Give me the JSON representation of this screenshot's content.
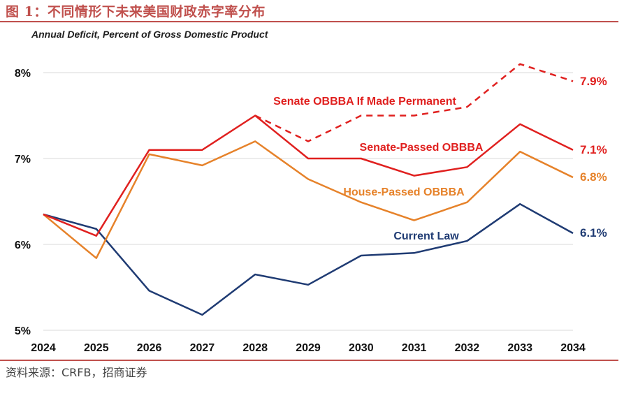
{
  "figure": {
    "title": "图 1：不同情形下未来美国财政赤字率分布",
    "source": "资料来源：CRFB，招商证券"
  },
  "chart_data": {
    "type": "line",
    "subtitle": "Annual Deficit, Percent of Gross Domestic Product",
    "xlabel": "",
    "ylabel": "",
    "x": [
      "2024",
      "2025",
      "2026",
      "2027",
      "2028",
      "2029",
      "2030",
      "2031",
      "2032",
      "2033",
      "2034"
    ],
    "ylim": [
      5,
      8.4
    ],
    "yticks": [
      5,
      6,
      7,
      8
    ],
    "ytick_labels": [
      "5%",
      "6%",
      "7%",
      "8%"
    ],
    "grid": "horizontal",
    "series": [
      {
        "name": "Current Law",
        "color": "#1f3b73",
        "dash": false,
        "values": [
          6.35,
          6.18,
          5.46,
          5.18,
          5.65,
          5.53,
          5.87,
          5.9,
          6.04,
          6.47,
          6.13
        ],
        "end_label": "6.1%"
      },
      {
        "name": "House-Passed OBBBA",
        "color": "#e6822a",
        "dash": false,
        "values": [
          6.35,
          5.84,
          7.05,
          6.92,
          7.2,
          6.76,
          6.49,
          6.28,
          6.49,
          7.08,
          6.78
        ],
        "end_label": "6.8%"
      },
      {
        "name": "Senate-Passed OBBBA",
        "color": "#e0201f",
        "dash": false,
        "values": [
          6.35,
          6.1,
          7.1,
          7.1,
          7.5,
          7.0,
          7.0,
          6.8,
          6.9,
          7.4,
          7.1
        ],
        "end_label": "7.1%"
      },
      {
        "name": "Senate OBBBA If Made Permanent",
        "color": "#e0201f",
        "dash": true,
        "x_start_index": 4,
        "values": [
          null,
          null,
          null,
          null,
          7.5,
          7.2,
          7.5,
          7.5,
          7.6,
          8.1,
          7.9
        ],
        "end_label": "7.9%"
      }
    ]
  }
}
